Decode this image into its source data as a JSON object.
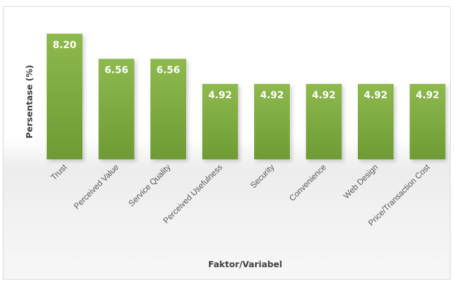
{
  "chart_data": {
    "type": "bar",
    "categories": [
      "Trust",
      "Perceived Value",
      "Service Quality",
      "Perceived Usefulness",
      "Security",
      "Convenience",
      "Web Design",
      "Price/Transaction Cost"
    ],
    "values": [
      8.2,
      6.56,
      6.56,
      4.92,
      4.92,
      4.92,
      4.92,
      4.92
    ],
    "data_labels": [
      "8.20",
      "6.56",
      "6.56",
      "4.92",
      "4.92",
      "4.92",
      "4.92",
      "4.92"
    ],
    "title": "",
    "xlabel": "Faktor/Variabel",
    "ylabel": "Persentase (%)",
    "ylim": [
      0,
      8.2
    ],
    "grid": false,
    "legend": "none",
    "colors": {
      "bar_top": "#8db94e",
      "bar_bottom": "#6e9b34",
      "data_label": "#ffffff",
      "axis_title": "#404040",
      "tick_label": "#595959"
    }
  }
}
